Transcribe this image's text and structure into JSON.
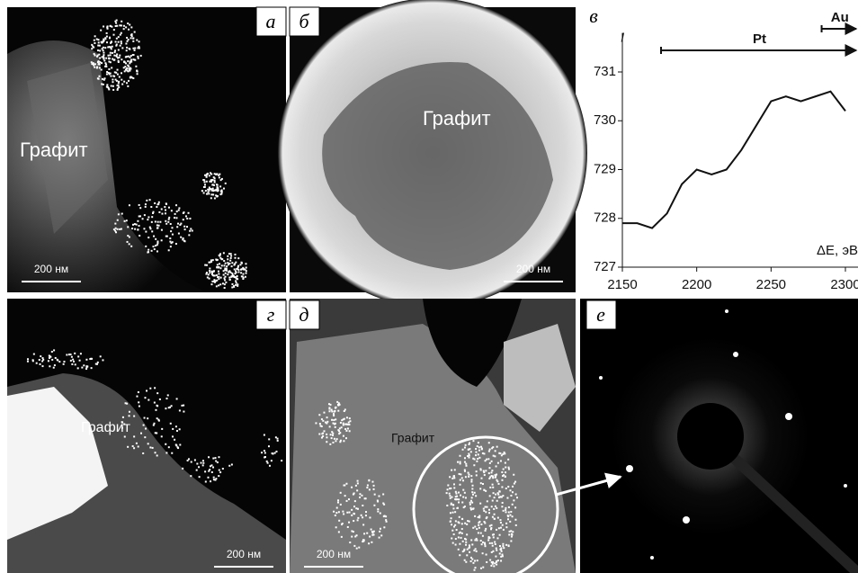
{
  "panels": [
    {
      "label": "а",
      "text": "Графит",
      "scale": "200 нм"
    },
    {
      "label": "б",
      "text": "Графит",
      "scale": "200 нм"
    },
    {
      "label": "в"
    },
    {
      "label": "г",
      "text": "Графит",
      "scale": "200 нм"
    },
    {
      "label": "д",
      "text": "Графит",
      "scale": "200 нм"
    },
    {
      "label": "е"
    }
  ],
  "chart_data": {
    "type": "line",
    "y_label": "I",
    "x_label": "ΔE, эВ",
    "x": [
      2150,
      2160,
      2170,
      2180,
      2190,
      2200,
      2210,
      2220,
      2230,
      2240,
      2250,
      2260,
      2270,
      2280,
      2290,
      2300
    ],
    "series": [
      {
        "color": "#111111",
        "values": [
          727.9,
          727.9,
          727.8,
          728.1,
          728.7,
          729.0,
          728.9,
          729.0,
          729.4,
          729.9,
          730.4,
          730.5,
          730.4,
          730.5,
          730.6,
          730.2
        ]
      }
    ],
    "xlim": [
      2150,
      2300
    ],
    "xticks": [
      2150,
      2200,
      2250,
      2300
    ],
    "ylim": [
      727,
      731.8
    ],
    "yticks": [
      727,
      728,
      729,
      730,
      731
    ],
    "ranges": [
      {
        "name": "Pt",
        "start": 2176
      },
      {
        "name": "Au",
        "start": 2284
      }
    ]
  }
}
